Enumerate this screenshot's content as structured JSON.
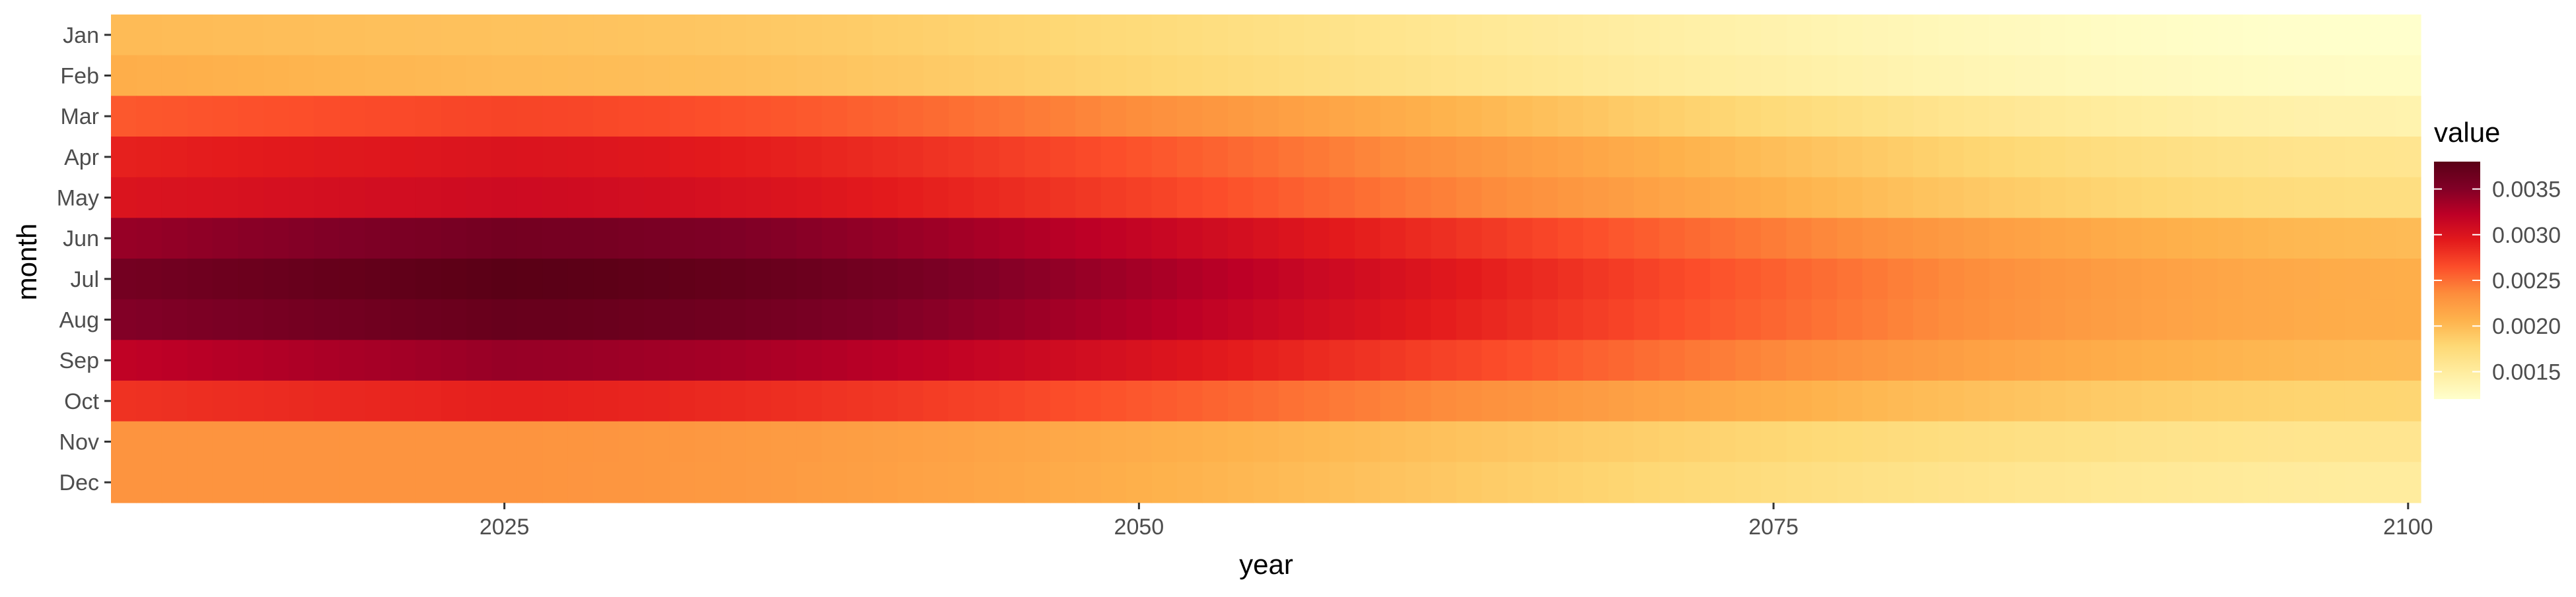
{
  "chart_data": {
    "type": "heatmap",
    "xlabel": "year",
    "ylabel": "month",
    "x_ticks": [
      2025,
      2050,
      2075,
      2100
    ],
    "x_range": [
      2010,
      2100
    ],
    "y_categories": [
      "Jan",
      "Feb",
      "Mar",
      "Apr",
      "May",
      "Jun",
      "Jul",
      "Aug",
      "Sep",
      "Oct",
      "Nov",
      "Dec"
    ],
    "legend": {
      "title": "value",
      "ticks": [
        "0.0035",
        "0.0030",
        "0.0025",
        "0.0020",
        "0.0015"
      ],
      "tick_values": [
        0.0035,
        0.003,
        0.0025,
        0.002,
        0.0015
      ],
      "range": [
        0.0012,
        0.0038
      ],
      "placement": "right"
    },
    "colormap": [
      "#ffffcc",
      "#ffeda0",
      "#fed976",
      "#feb24c",
      "#fd8d3c",
      "#fc4e2a",
      "#e31a1c",
      "#bd0026",
      "#800026",
      "#5a0016"
    ],
    "background_color": "#ebebeb",
    "grid": true,
    "model": {
      "peak_year": 2025,
      "baseline_values_at_peak": [
        0.00195,
        0.002,
        0.0027,
        0.003,
        0.0031,
        0.0036,
        0.0038,
        0.0037,
        0.0034,
        0.0029,
        0.0023,
        0.0023
      ],
      "values_at_2100": [
        0.0012,
        0.00125,
        0.0014,
        0.0016,
        0.0017,
        0.002,
        0.0021,
        0.0021,
        0.002,
        0.0018,
        0.0016,
        0.0015
      ],
      "values_at_2010": [
        0.002,
        0.0021,
        0.0026,
        0.0029,
        0.003,
        0.0034,
        0.0036,
        0.0035,
        0.0032,
        0.0028,
        0.0023,
        0.0023
      ]
    }
  }
}
